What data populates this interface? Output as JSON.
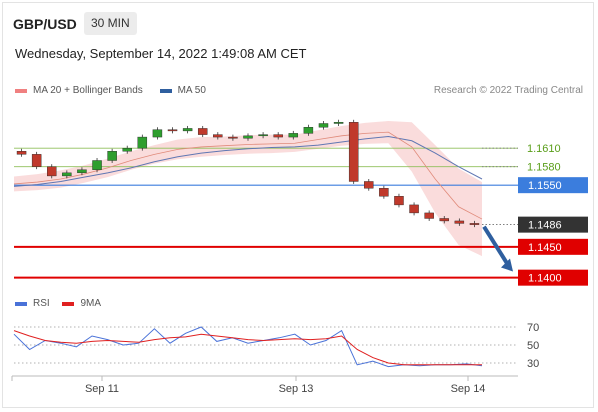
{
  "header": {
    "symbol": "GBP/USD",
    "timeframe": "30 MIN",
    "datetime": "Wednesday, September 14, 2022 1:49:08 AM CET"
  },
  "legend": {
    "items": [
      {
        "label": "MA 20 + Bollinger Bands",
        "color": "#f08080"
      },
      {
        "label": "MA 50",
        "color": "#2f5f9f"
      }
    ],
    "research": "Research © 2022 Trading Central"
  },
  "colors": {
    "up_candle": "#2e9e2e",
    "down_candle": "#c0392b",
    "band_fill": "#f8d0d0",
    "ma50": "#6077b3",
    "ma20": "#e08a7a",
    "resistance": "#8fbf5a",
    "pivot": "#3b7ddd",
    "support": "#e00000",
    "current": "#333333",
    "rsi": "#4a72d8",
    "rsi_ma": "#e02020"
  },
  "chart_data": [
    {
      "type": "line",
      "title": "GBP/USD 30 MIN",
      "x_ticks": [
        "Sep 11",
        "Sep 13",
        "Sep 14"
      ],
      "ylim": [
        1.138,
        1.168
      ],
      "series": [
        {
          "name": "MA 20 + Bollinger Bands",
          "values": [
            1.1552,
            1.1555,
            1.156,
            1.1568,
            1.1578,
            1.159,
            1.16,
            1.1608,
            1.1612,
            1.1614,
            1.1616,
            1.1617,
            1.1618,
            1.1624,
            1.163,
            1.1634,
            1.1636,
            1.1612,
            1.156,
            1.1515,
            1.1495
          ]
        },
        {
          "name": "MA 50",
          "values": [
            1.1548,
            1.1551,
            1.1556,
            1.1563,
            1.157,
            1.1578,
            1.1588,
            1.1596,
            1.1602,
            1.1606,
            1.1609,
            1.1611,
            1.1612,
            1.1615,
            1.162,
            1.1625,
            1.1629,
            1.1622,
            1.1602,
            1.158,
            1.156
          ]
        }
      ],
      "close": [
        1.16,
        1.158,
        1.1565,
        1.157,
        1.1575,
        1.159,
        1.1605,
        1.161,
        1.1628,
        1.164,
        1.1638,
        1.1642,
        1.1632,
        1.1628,
        1.1626,
        1.163,
        1.1632,
        1.1628,
        1.1634,
        1.1644,
        1.165,
        1.1652,
        1.1556,
        1.1545,
        1.1532,
        1.1518,
        1.1505,
        1.1496,
        1.1492,
        1.1488,
        1.1486
      ],
      "levels": [
        {
          "label": "1.1610",
          "value": 1.161,
          "kind": "resistance"
        },
        {
          "label": "1.1580",
          "value": 1.158,
          "kind": "resistance"
        },
        {
          "label": "1.1550",
          "value": 1.155,
          "kind": "pivot"
        },
        {
          "label": "1.1486",
          "value": 1.1486,
          "kind": "current"
        },
        {
          "label": "1.1450",
          "value": 1.145,
          "kind": "support"
        },
        {
          "label": "1.1400",
          "value": 1.14,
          "kind": "support"
        }
      ]
    },
    {
      "type": "line",
      "title": "RSI",
      "yticks": [
        70,
        50,
        30
      ],
      "ylim": [
        20,
        80
      ],
      "series": [
        {
          "name": "RSI",
          "values": [
            62,
            45,
            55,
            52,
            48,
            60,
            56,
            50,
            52,
            68,
            52,
            63,
            70,
            54,
            58,
            52,
            55,
            58,
            62,
            50,
            55,
            66,
            28,
            32,
            26,
            28,
            27,
            28,
            28,
            29,
            27
          ]
        },
        {
          "name": "9MA",
          "values": [
            66,
            60,
            55,
            53,
            52,
            54,
            55,
            54,
            53,
            56,
            58,
            59,
            62,
            60,
            58,
            56,
            55,
            56,
            57,
            56,
            57,
            60,
            45,
            36,
            30,
            28,
            28,
            28,
            28,
            28,
            28
          ]
        }
      ]
    }
  ]
}
